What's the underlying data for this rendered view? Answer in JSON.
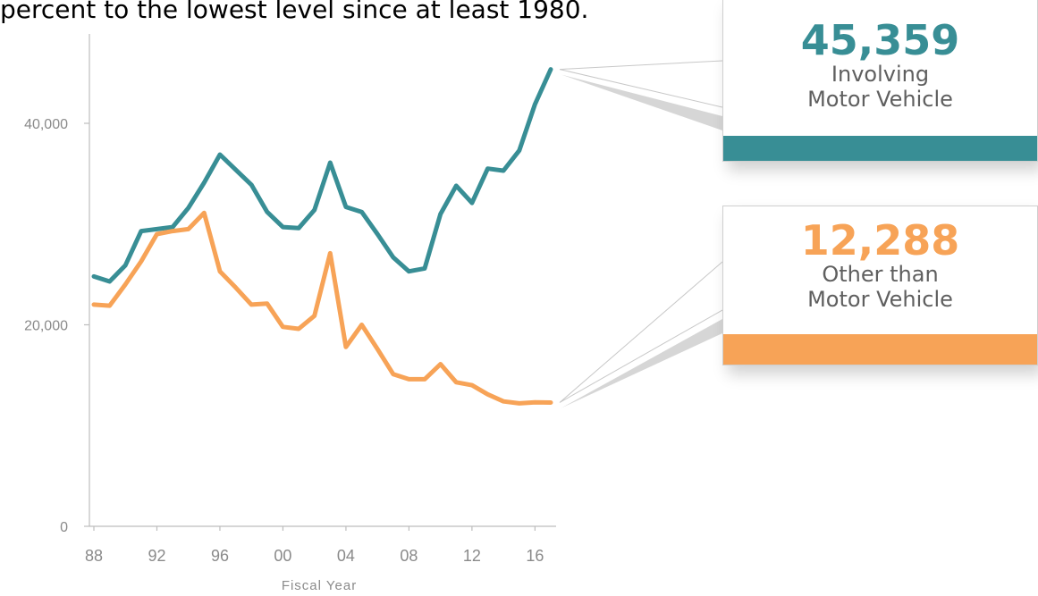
{
  "heading": "percent to the lowest level since at least 1980.",
  "colors": {
    "motor": "#388E95",
    "other": "#F7A357",
    "axis": "#bdbdbd",
    "tick_text": "#8a8a8a"
  },
  "callouts": {
    "motor": {
      "value": "45,359",
      "line1": "Involving",
      "line2": "Motor Vehicle"
    },
    "other": {
      "value": "12,288",
      "line1": "Other than",
      "line2": "Motor Vehicle"
    }
  },
  "chart_data": {
    "type": "line",
    "title": "",
    "xlabel": "Fiscal Year",
    "ylabel": "",
    "ylim": [
      0,
      45000
    ],
    "x": [
      1988,
      1989,
      1990,
      1991,
      1992,
      1993,
      1994,
      1995,
      1996,
      1997,
      1998,
      1999,
      2000,
      2001,
      2002,
      2003,
      2004,
      2005,
      2006,
      2007,
      2008,
      2009,
      2010,
      2011,
      2012,
      2013,
      2014,
      2015,
      2016,
      2017
    ],
    "x_ticks": [
      1988,
      1992,
      1996,
      2000,
      2004,
      2008,
      2012,
      2016
    ],
    "x_tick_labels": [
      "88",
      "92",
      "96",
      "00",
      "04",
      "08",
      "12",
      "16"
    ],
    "y_ticks": [
      0,
      20000,
      40000
    ],
    "y_tick_labels": [
      "0",
      "20,000",
      "40,000"
    ],
    "grid": false,
    "series": [
      {
        "key": "motor",
        "values": [
          24800,
          24300,
          25900,
          29300,
          29500,
          29700,
          31600,
          34100,
          36900,
          35400,
          33900,
          31200,
          29700,
          29600,
          31400,
          36100,
          31700,
          31200,
          29000,
          26700,
          25300,
          25600,
          31000,
          33800,
          32100,
          35500,
          35300,
          37300,
          41900,
          45359
        ]
      },
      {
        "key": "other",
        "values": [
          22000,
          21900,
          24000,
          26300,
          29000,
          29300,
          29500,
          31100,
          25300,
          23700,
          22000,
          22100,
          19800,
          19600,
          20900,
          27100,
          17800,
          20000,
          17600,
          15100,
          14600,
          14600,
          16100,
          14300,
          14000,
          13100,
          12400,
          12200,
          12300,
          12288
        ]
      }
    ]
  }
}
